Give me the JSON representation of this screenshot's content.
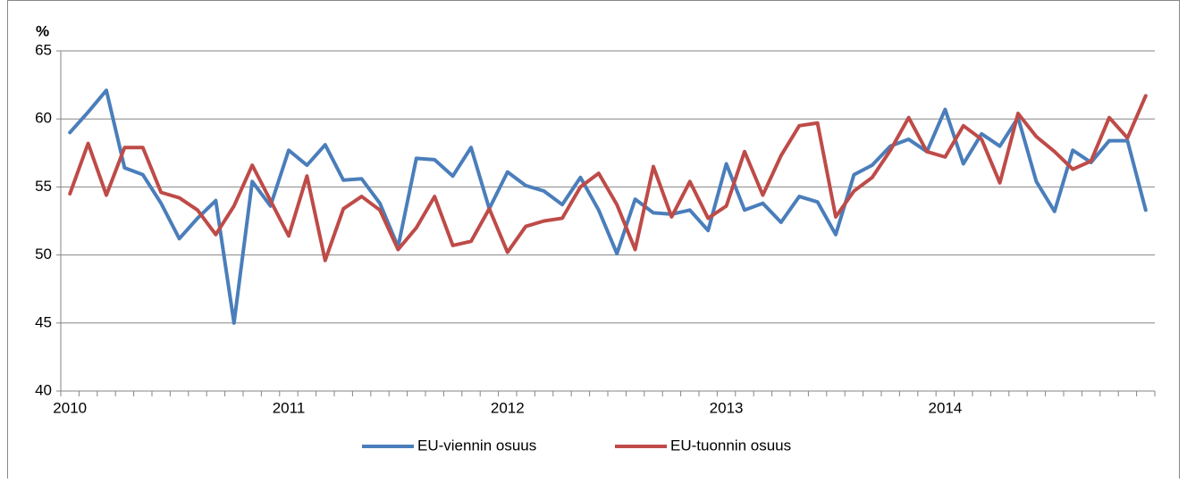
{
  "chart_data": {
    "type": "line",
    "y_label": "%",
    "categories": [
      "2010",
      null,
      null,
      null,
      null,
      null,
      null,
      null,
      null,
      null,
      null,
      null,
      "2011",
      null,
      null,
      null,
      null,
      null,
      null,
      null,
      null,
      null,
      null,
      null,
      "2012",
      null,
      null,
      null,
      null,
      null,
      null,
      null,
      null,
      null,
      null,
      null,
      "2013",
      null,
      null,
      null,
      null,
      null,
      null,
      null,
      null,
      null,
      null,
      null,
      "2014",
      null,
      null,
      null,
      null,
      null,
      null,
      null,
      null,
      null,
      null,
      null
    ],
    "series": [
      {
        "name": "EU-viennin osuus",
        "color": "#4a7ebb",
        "values": [
          59.0,
          60.5,
          62.1,
          56.4,
          55.9,
          53.8,
          51.2,
          52.7,
          54.0,
          45.0,
          55.4,
          53.6,
          57.7,
          56.6,
          58.1,
          55.5,
          55.6,
          53.8,
          50.6,
          57.1,
          57.0,
          55.8,
          57.9,
          53.4,
          56.1,
          55.1,
          54.7,
          53.7,
          55.7,
          53.3,
          50.1,
          54.1,
          53.1,
          53.0,
          53.3,
          51.8,
          56.7,
          53.3,
          53.8,
          52.4,
          54.3,
          53.9,
          51.5,
          55.9,
          56.6,
          58.0,
          58.5,
          57.6,
          60.7,
          56.7,
          58.9,
          58.0,
          60.1,
          55.4,
          53.2,
          57.7,
          56.8,
          58.4,
          58.4,
          53.3
        ]
      },
      {
        "name": "EU-tuonnin osuus",
        "color": "#be4b48",
        "values": [
          54.5,
          58.2,
          54.4,
          57.9,
          57.9,
          54.6,
          54.2,
          53.3,
          51.5,
          53.6,
          56.6,
          54.0,
          51.4,
          55.8,
          49.6,
          53.4,
          54.3,
          53.3,
          50.4,
          52.0,
          54.3,
          50.7,
          51.0,
          53.4,
          50.2,
          52.1,
          52.5,
          52.7,
          55.0,
          56.0,
          53.7,
          50.4,
          56.5,
          52.8,
          55.4,
          52.7,
          53.6,
          57.6,
          54.4,
          57.3,
          59.5,
          59.7,
          52.8,
          54.7,
          55.7,
          57.7,
          60.1,
          57.6,
          57.2,
          59.5,
          58.5,
          55.3,
          60.4,
          58.7,
          57.6,
          56.3,
          56.9,
          60.1,
          58.6,
          61.7
        ]
      }
    ],
    "ylim": [
      40,
      65
    ],
    "yticks": [
      40,
      45,
      50,
      55,
      60,
      65
    ],
    "grid": true,
    "legend": "bottom"
  }
}
